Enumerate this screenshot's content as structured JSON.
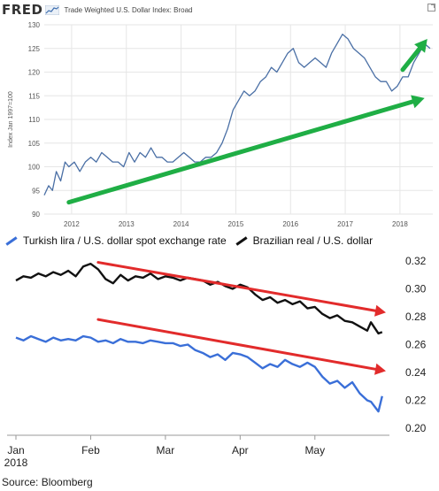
{
  "fred_header": {
    "logo_text": "FRED",
    "series_title": "Trade Weighted U.S. Dollar Index: Broad",
    "logo_icon": "fred-graph-icon",
    "expand_icon": "expand-icon"
  },
  "source_note": "Source: Bloomberg",
  "colors": {
    "fred_line": "#4a6fa5",
    "turkey_line": "#3a6fd8",
    "brazil_line": "#111111",
    "green_arrow": "#1fae45",
    "red_arrow": "#e22b2b",
    "fred_plot_bg": "#ffffff",
    "fred_grid": "#e6e6e6"
  },
  "chart_data": [
    {
      "type": "line",
      "title": "Trade Weighted U.S. Dollar Index: Broad",
      "xlabel": "",
      "ylabel": "Index Jan 1997=100",
      "xlim": [
        2011.5,
        2018.6
      ],
      "ylim": [
        90,
        130
      ],
      "grid": true,
      "x_ticks": [
        2012,
        2013,
        2014,
        2015,
        2016,
        2017,
        2018
      ],
      "x_tick_labels": [
        "2012",
        "2013",
        "2014",
        "2015",
        "2016",
        "2017",
        "2018"
      ],
      "y_ticks": [
        90,
        95,
        100,
        105,
        110,
        115,
        120,
        125,
        130
      ],
      "y_tick_labels": [
        "90",
        "95",
        "100",
        "105",
        "110",
        "115",
        "120",
        "125",
        "130"
      ],
      "series": [
        {
          "name": "Trade Weighted U.S. Dollar Index: Broad",
          "x": [
            2011.5,
            2011.58,
            2011.65,
            2011.72,
            2011.8,
            2011.88,
            2011.95,
            2012.05,
            2012.15,
            2012.25,
            2012.35,
            2012.45,
            2012.55,
            2012.65,
            2012.75,
            2012.85,
            2012.95,
            2013.05,
            2013.15,
            2013.25,
            2013.35,
            2013.45,
            2013.55,
            2013.65,
            2013.75,
            2013.85,
            2013.95,
            2014.05,
            2014.15,
            2014.25,
            2014.35,
            2014.45,
            2014.55,
            2014.65,
            2014.75,
            2014.85,
            2014.95,
            2015.05,
            2015.15,
            2015.25,
            2015.35,
            2015.45,
            2015.55,
            2015.65,
            2015.75,
            2015.85,
            2015.95,
            2016.05,
            2016.15,
            2016.25,
            2016.35,
            2016.45,
            2016.55,
            2016.65,
            2016.75,
            2016.85,
            2016.95,
            2017.05,
            2017.15,
            2017.25,
            2017.35,
            2017.45,
            2017.55,
            2017.65,
            2017.75,
            2017.85,
            2017.95,
            2018.05,
            2018.15,
            2018.25,
            2018.35,
            2018.45,
            2018.55
          ],
          "values": [
            94,
            96,
            95,
            99,
            97,
            101,
            100,
            101,
            99,
            101,
            102,
            101,
            103,
            102,
            101,
            101,
            100,
            103,
            101,
            103,
            102,
            104,
            102,
            102,
            101,
            101,
            102,
            103,
            102,
            101,
            101,
            102,
            102,
            103,
            105,
            108,
            112,
            114,
            116,
            115,
            116,
            118,
            119,
            121,
            120,
            122,
            124,
            125,
            122,
            121,
            122,
            123,
            122,
            121,
            124,
            126,
            128,
            127,
            125,
            124,
            123,
            121,
            119,
            118,
            118,
            116,
            117,
            119,
            119,
            122,
            124,
            126,
            125
          ]
        }
      ],
      "annotations": [
        {
          "type": "arrow",
          "color": "green",
          "from": [
            2011.95,
            92.5
          ],
          "to": [
            2018.45,
            114.5
          ]
        },
        {
          "type": "arrow",
          "color": "green",
          "from": [
            2018.05,
            120.5
          ],
          "to": [
            2018.5,
            127
          ]
        }
      ]
    },
    {
      "type": "line",
      "title": "",
      "xlabel": "",
      "ylabel": "",
      "xlim": [
        0,
        4.95
      ],
      "ylim": [
        0.2,
        0.32
      ],
      "grid": false,
      "x_ticks": [
        0,
        1,
        2,
        3,
        4
      ],
      "x_tick_labels": [
        "Jan\n2018",
        "Feb",
        "Mar",
        "Apr",
        "May"
      ],
      "y_ticks": [
        0.2,
        0.22,
        0.24,
        0.26,
        0.28,
        0.3,
        0.32
      ],
      "y_tick_labels": [
        "0.20",
        "0.22",
        "0.24",
        "0.26",
        "0.28",
        "0.30",
        "0.32"
      ],
      "series": [
        {
          "name": "Brazilian real / U.S. dollar",
          "x": [
            0.0,
            0.1,
            0.2,
            0.3,
            0.4,
            0.5,
            0.6,
            0.7,
            0.8,
            0.9,
            1.0,
            1.1,
            1.2,
            1.3,
            1.4,
            1.5,
            1.6,
            1.7,
            1.8,
            1.9,
            2.0,
            2.1,
            2.2,
            2.3,
            2.4,
            2.5,
            2.6,
            2.7,
            2.8,
            2.9,
            3.0,
            3.1,
            3.2,
            3.3,
            3.4,
            3.5,
            3.6,
            3.7,
            3.8,
            3.9,
            4.0,
            4.1,
            4.2,
            4.3,
            4.4,
            4.5,
            4.6,
            4.7,
            4.75,
            4.85,
            4.9
          ],
          "values": [
            0.306,
            0.309,
            0.308,
            0.311,
            0.309,
            0.312,
            0.31,
            0.313,
            0.309,
            0.316,
            0.318,
            0.314,
            0.307,
            0.304,
            0.31,
            0.306,
            0.309,
            0.308,
            0.311,
            0.307,
            0.309,
            0.308,
            0.306,
            0.308,
            0.307,
            0.306,
            0.303,
            0.305,
            0.302,
            0.3,
            0.303,
            0.301,
            0.296,
            0.292,
            0.294,
            0.29,
            0.292,
            0.289,
            0.291,
            0.286,
            0.287,
            0.282,
            0.279,
            0.281,
            0.277,
            0.276,
            0.273,
            0.27,
            0.276,
            0.268,
            0.269
          ]
        },
        {
          "name": "Turkish lira / U.S. dollar spot exchange rate",
          "x": [
            0.0,
            0.1,
            0.2,
            0.3,
            0.4,
            0.5,
            0.6,
            0.7,
            0.8,
            0.9,
            1.0,
            1.1,
            1.2,
            1.3,
            1.4,
            1.5,
            1.6,
            1.7,
            1.8,
            1.9,
            2.0,
            2.1,
            2.2,
            2.3,
            2.4,
            2.5,
            2.6,
            2.7,
            2.8,
            2.9,
            3.0,
            3.1,
            3.2,
            3.3,
            3.4,
            3.5,
            3.6,
            3.7,
            3.8,
            3.9,
            4.0,
            4.1,
            4.2,
            4.3,
            4.4,
            4.5,
            4.6,
            4.7,
            4.75,
            4.85,
            4.9
          ],
          "values": [
            0.265,
            0.263,
            0.266,
            0.264,
            0.262,
            0.265,
            0.263,
            0.264,
            0.263,
            0.266,
            0.265,
            0.262,
            0.263,
            0.261,
            0.264,
            0.262,
            0.262,
            0.261,
            0.263,
            0.262,
            0.261,
            0.261,
            0.259,
            0.26,
            0.256,
            0.254,
            0.251,
            0.253,
            0.249,
            0.254,
            0.253,
            0.251,
            0.247,
            0.243,
            0.246,
            0.244,
            0.249,
            0.246,
            0.244,
            0.247,
            0.244,
            0.237,
            0.232,
            0.234,
            0.229,
            0.233,
            0.225,
            0.22,
            0.219,
            0.212,
            0.223
          ]
        }
      ],
      "annotations": [
        {
          "type": "arrow",
          "color": "red",
          "from": [
            1.1,
            0.319
          ],
          "to": [
            4.95,
            0.283
          ]
        },
        {
          "type": "arrow",
          "color": "red",
          "from": [
            1.1,
            0.278
          ],
          "to": [
            4.95,
            0.241
          ]
        }
      ]
    }
  ],
  "legend": {
    "items": [
      {
        "label": "Turkish lira / U.S. dollar spot exchange rate",
        "color_key": "turkey_line"
      },
      {
        "label": "Brazilian real / U.S. dollar",
        "color_key": "brazil_line"
      }
    ]
  }
}
